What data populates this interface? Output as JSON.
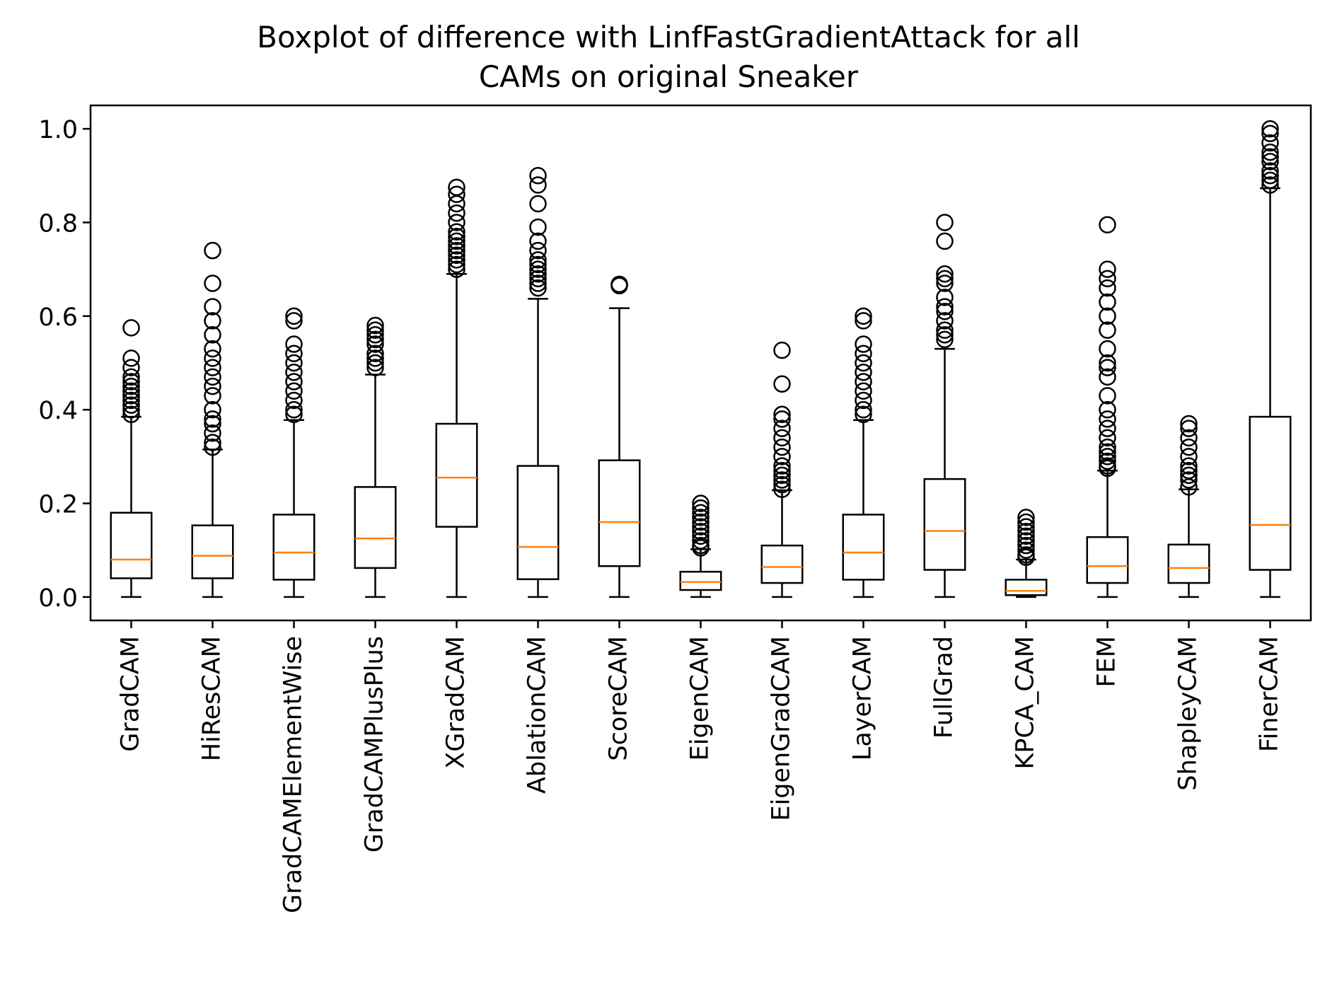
{
  "chart_data": {
    "type": "boxplot",
    "title": [
      "Boxplot of difference with LinfFastGradientAttack for all",
      "CAMs on original Sneaker"
    ],
    "xlabel": "",
    "ylabel": "",
    "ylim": [
      -0.05,
      1.05
    ],
    "yticks": [
      "0.0",
      "0.2",
      "0.4",
      "0.6",
      "0.8",
      "1.0"
    ],
    "grid": false,
    "box_color": "#000000",
    "median_color": "#ff7f0e",
    "categories": [
      "GradCAM",
      "HiResCAM",
      "GradCAMElementWise",
      "GradCAMPlusPlus",
      "XGradCAM",
      "AblationCAM",
      "ScoreCAM",
      "EigenCAM",
      "EigenGradCAM",
      "LayerCAM",
      "FullGrad",
      "KPCA_CAM",
      "FEM",
      "ShapleyCAM",
      "FinerCAM"
    ],
    "boxes": [
      {
        "whislo": 0.0,
        "q1": 0.04,
        "med": 0.08,
        "q3": 0.18,
        "whishi": 0.385,
        "fliers": [
          0.39,
          0.4,
          0.41,
          0.42,
          0.43,
          0.44,
          0.45,
          0.46,
          0.47,
          0.49,
          0.51,
          0.575
        ]
      },
      {
        "whislo": 0.0,
        "q1": 0.04,
        "med": 0.088,
        "q3": 0.153,
        "whishi": 0.315,
        "fliers": [
          0.32,
          0.33,
          0.35,
          0.37,
          0.38,
          0.4,
          0.43,
          0.45,
          0.47,
          0.49,
          0.51,
          0.53,
          0.56,
          0.59,
          0.62,
          0.67,
          0.74
        ]
      },
      {
        "whislo": 0.0,
        "q1": 0.037,
        "med": 0.095,
        "q3": 0.176,
        "whishi": 0.378,
        "fliers": [
          0.39,
          0.4,
          0.42,
          0.44,
          0.46,
          0.48,
          0.5,
          0.52,
          0.54,
          0.59,
          0.6
        ]
      },
      {
        "whislo": 0.0,
        "q1": 0.062,
        "med": 0.125,
        "q3": 0.235,
        "whishi": 0.475,
        "fliers": [
          0.49,
          0.5,
          0.51,
          0.52,
          0.54,
          0.55,
          0.56,
          0.57,
          0.58
        ]
      },
      {
        "whislo": 0.0,
        "q1": 0.15,
        "med": 0.255,
        "q3": 0.37,
        "whishi": 0.69,
        "fliers": [
          0.7,
          0.71,
          0.72,
          0.73,
          0.74,
          0.75,
          0.76,
          0.77,
          0.78,
          0.8,
          0.82,
          0.84,
          0.86,
          0.875
        ]
      },
      {
        "whislo": 0.0,
        "q1": 0.038,
        "med": 0.107,
        "q3": 0.28,
        "whishi": 0.637,
        "fliers": [
          0.66,
          0.67,
          0.68,
          0.69,
          0.7,
          0.71,
          0.72,
          0.74,
          0.76,
          0.79,
          0.84,
          0.88,
          0.9
        ]
      },
      {
        "whislo": 0.0,
        "q1": 0.066,
        "med": 0.16,
        "q3": 0.292,
        "whishi": 0.617,
        "fliers": [
          0.665,
          0.668
        ]
      },
      {
        "whislo": 0.0,
        "q1": 0.015,
        "med": 0.032,
        "q3": 0.054,
        "whishi": 0.102,
        "fliers": [
          0.105,
          0.11,
          0.12,
          0.13,
          0.14,
          0.15,
          0.16,
          0.17,
          0.18,
          0.19,
          0.2
        ]
      },
      {
        "whislo": 0.0,
        "q1": 0.03,
        "med": 0.064,
        "q3": 0.11,
        "whishi": 0.228,
        "fliers": [
          0.23,
          0.24,
          0.25,
          0.26,
          0.27,
          0.28,
          0.3,
          0.32,
          0.34,
          0.36,
          0.38,
          0.39,
          0.455,
          0.527
        ]
      },
      {
        "whislo": 0.0,
        "q1": 0.037,
        "med": 0.095,
        "q3": 0.176,
        "whishi": 0.378,
        "fliers": [
          0.39,
          0.4,
          0.42,
          0.44,
          0.46,
          0.48,
          0.5,
          0.52,
          0.54,
          0.59,
          0.6
        ]
      },
      {
        "whislo": 0.0,
        "q1": 0.058,
        "med": 0.141,
        "q3": 0.252,
        "whishi": 0.53,
        "fliers": [
          0.55,
          0.56,
          0.57,
          0.59,
          0.61,
          0.62,
          0.64,
          0.67,
          0.68,
          0.69,
          0.76,
          0.8
        ]
      },
      {
        "whislo": 0.0,
        "q1": 0.004,
        "med": 0.013,
        "q3": 0.037,
        "whishi": 0.08,
        "fliers": [
          0.085,
          0.09,
          0.1,
          0.11,
          0.12,
          0.13,
          0.14,
          0.15,
          0.16,
          0.17
        ]
      },
      {
        "whislo": 0.0,
        "q1": 0.03,
        "med": 0.066,
        "q3": 0.128,
        "whishi": 0.27,
        "fliers": [
          0.275,
          0.28,
          0.29,
          0.3,
          0.31,
          0.32,
          0.34,
          0.36,
          0.38,
          0.4,
          0.43,
          0.47,
          0.49,
          0.5,
          0.53,
          0.57,
          0.6,
          0.63,
          0.66,
          0.68,
          0.7,
          0.795
        ]
      },
      {
        "whislo": 0.0,
        "q1": 0.03,
        "med": 0.062,
        "q3": 0.112,
        "whishi": 0.23,
        "fliers": [
          0.235,
          0.25,
          0.26,
          0.27,
          0.28,
          0.3,
          0.32,
          0.34,
          0.36,
          0.37
        ]
      },
      {
        "whislo": 0.0,
        "q1": 0.058,
        "med": 0.154,
        "q3": 0.385,
        "whishi": 0.873,
        "fliers": [
          0.88,
          0.89,
          0.9,
          0.91,
          0.93,
          0.94,
          0.95,
          0.97,
          0.99,
          1.0
        ]
      }
    ]
  }
}
